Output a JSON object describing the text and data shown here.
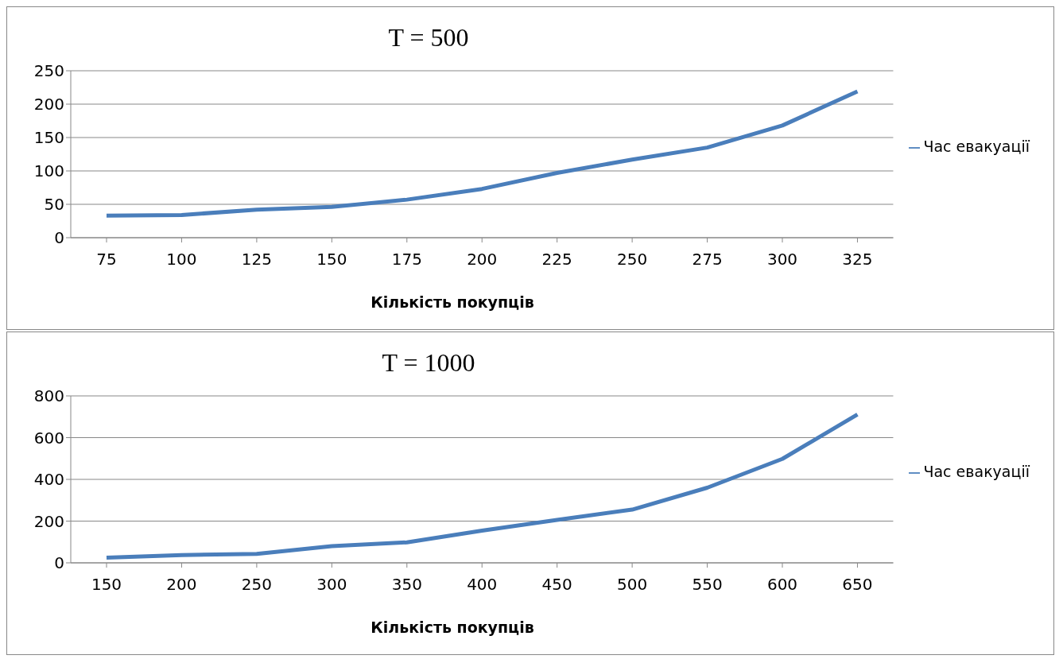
{
  "chart_data": [
    {
      "type": "line",
      "title": "T = 500",
      "xlabel": "Кількість покупців",
      "categories": [
        "75",
        "100",
        "125",
        "150",
        "175",
        "200",
        "225",
        "250",
        "275",
        "300",
        "325"
      ],
      "series": [
        {
          "name": "Час евакуації",
          "color": "#4a7ebb",
          "values": [
            33,
            34,
            42,
            46,
            57,
            73,
            97,
            117,
            135,
            168,
            219
          ]
        }
      ],
      "ylim": [
        0,
        250
      ],
      "yticks": [
        0,
        50,
        100,
        150,
        200,
        250
      ],
      "grid": "y",
      "legend": "right",
      "marker": "none",
      "line_style": "solid"
    },
    {
      "type": "line",
      "title": "T = 1000",
      "xlabel": "Кількість покупців",
      "categories": [
        "150",
        "200",
        "250",
        "300",
        "350",
        "400",
        "450",
        "500",
        "550",
        "600",
        "650"
      ],
      "series": [
        {
          "name": "Час евакуації",
          "color": "#4a7ebb",
          "values": [
            25,
            37,
            43,
            80,
            98,
            154,
            206,
            255,
            360,
            498,
            711
          ]
        }
      ],
      "ylim": [
        0,
        800
      ],
      "yticks": [
        0,
        200,
        400,
        600,
        800
      ],
      "grid": "y",
      "legend": "right",
      "marker": "none",
      "line_style": "solid"
    }
  ]
}
